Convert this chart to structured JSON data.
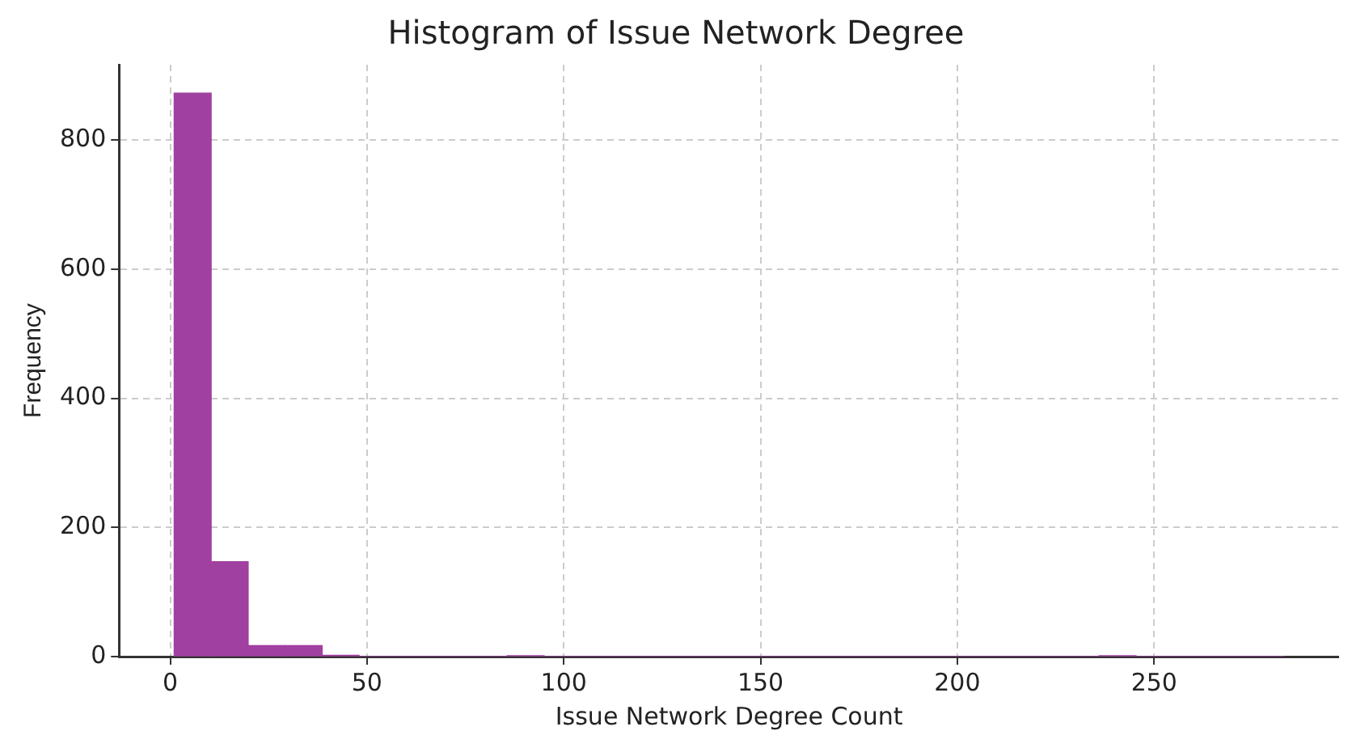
{
  "chart_data": {
    "type": "histogram",
    "title": "Histogram of Issue Network Degree",
    "xlabel": "Issue Network Degree Count",
    "ylabel": "Frequency",
    "bins": [
      1,
      10.4,
      19.8,
      29.2,
      38.6,
      48,
      57.4,
      66.8,
      76.2,
      85.6,
      95,
      104.4,
      113.8,
      123.2,
      132.6,
      142,
      151.4,
      160.8,
      170.2,
      179.6,
      189,
      198.4,
      207.8,
      217.2,
      226.6,
      236,
      245.4,
      254.8,
      264.2,
      273.6,
      283
    ],
    "values": [
      873,
      147,
      17,
      17,
      2,
      0,
      0,
      0,
      0,
      1,
      0,
      0,
      0,
      0,
      0,
      0,
      0,
      0,
      0,
      0,
      0,
      0,
      0,
      0,
      0,
      1,
      0,
      0,
      0,
      0
    ],
    "color": "#a040a0",
    "xlim": [
      -13,
      297
    ],
    "xticks": [
      0,
      50,
      100,
      150,
      200,
      250
    ],
    "ylim": [
      0,
      917
    ],
    "yticks": [
      0,
      200,
      400,
      600,
      800
    ],
    "grid": true
  }
}
